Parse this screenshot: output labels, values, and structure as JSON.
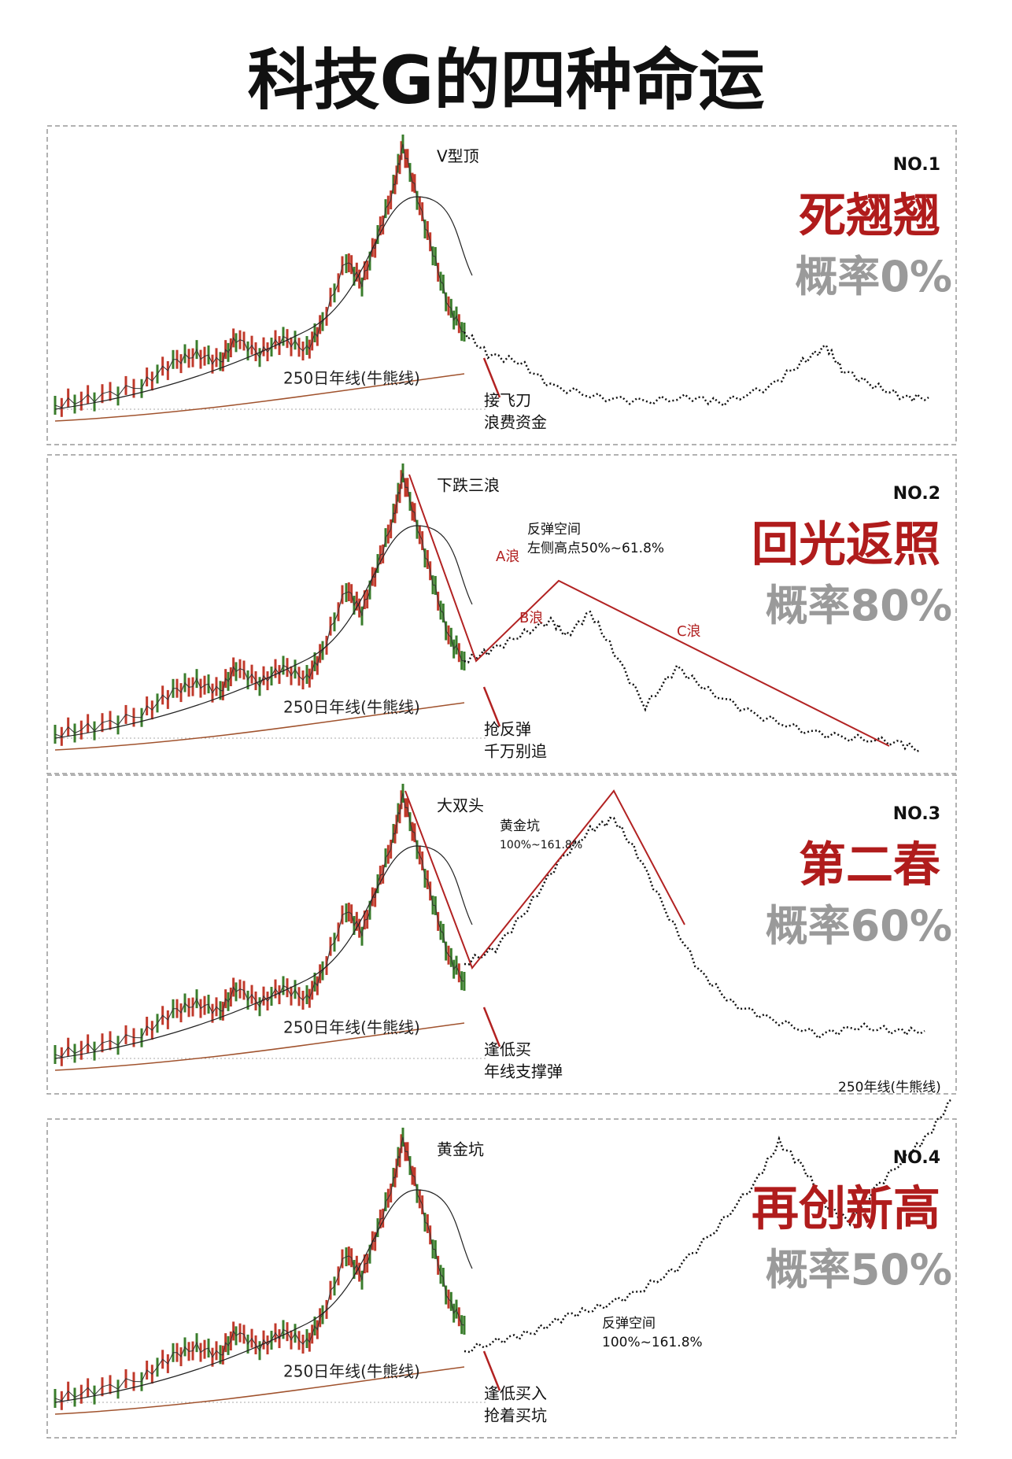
{
  "title": "科技G的四种命运",
  "panels": [
    {
      "no": "NO.1",
      "name": "死翘翘",
      "prob_label": "概率",
      "prob": "0%",
      "pattern": "V型顶",
      "ma_label": "250日年线(牛熊线)",
      "notes": [
        "接飞刀",
        "浪费资金"
      ]
    },
    {
      "no": "NO.2",
      "name": "回光返照",
      "prob_label": "概率",
      "prob": "80%",
      "pattern": "下跌三浪",
      "ma_label": "250日年线(牛熊线)",
      "notes": [
        "抢反弹",
        "千万别追"
      ],
      "waves": [
        "A浪",
        "B浪",
        "C浪"
      ],
      "space": [
        "反弹空间",
        "左侧高点50%~61.8%"
      ]
    },
    {
      "no": "NO.3",
      "name": "第二春",
      "prob_label": "概率",
      "prob": "60%",
      "pattern": "大双头",
      "ma_label": "250日年线(牛熊线)",
      "notes": [
        "逢低买",
        "年线支撑弹"
      ],
      "space": [
        "黄金坑",
        "100%~161.8%"
      ]
    },
    {
      "no": "NO.4",
      "name": "再创新高",
      "prob_label": "概率",
      "prob": "50%",
      "pattern": "黄金坑",
      "ma_label": "250日年线(牛熊线)",
      "notes": [
        "逢低买入",
        "抢着买坑"
      ],
      "space": [
        "反弹空间",
        "100%~161.8%"
      ],
      "top_label": "250年线(牛熊线)"
    }
  ]
}
